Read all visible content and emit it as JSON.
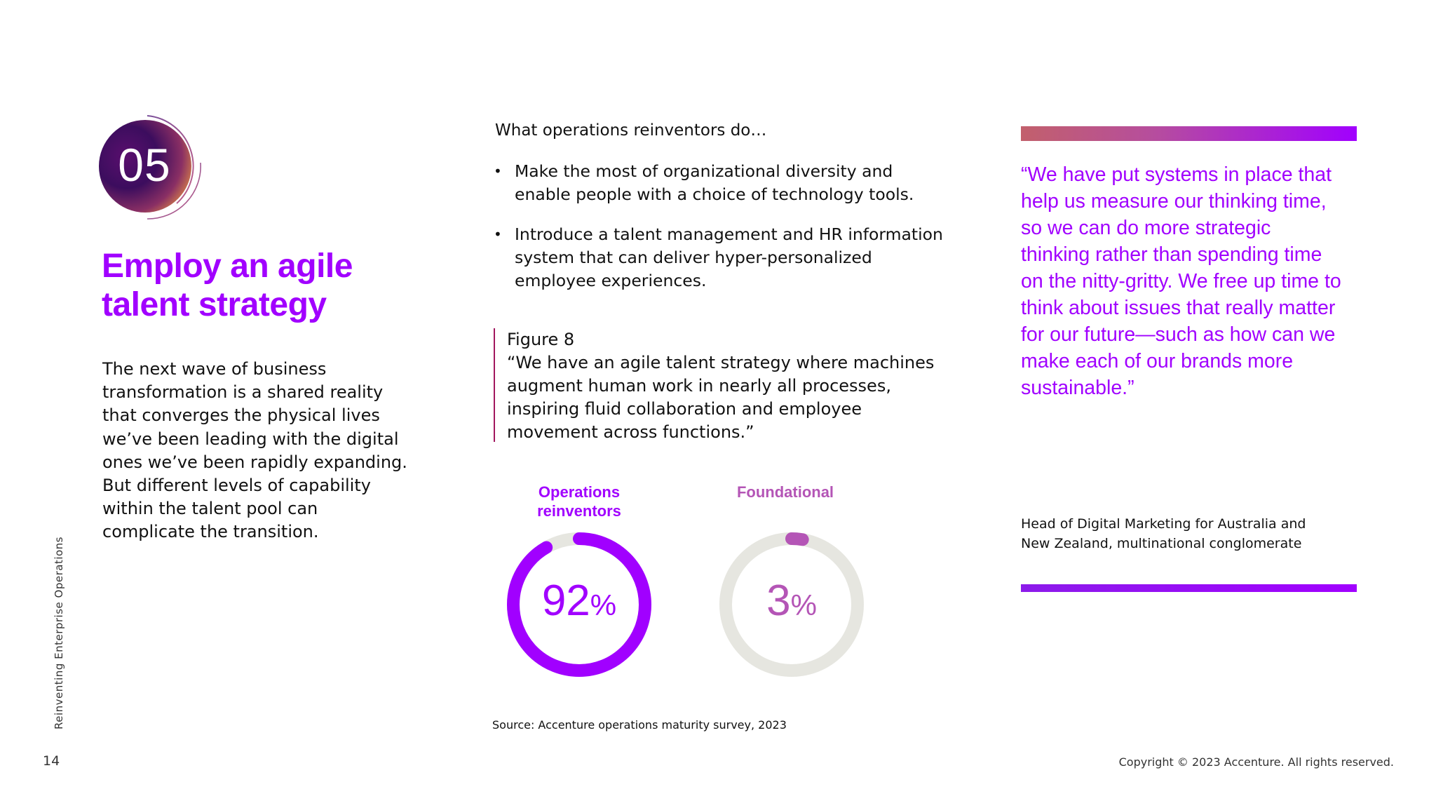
{
  "page": {
    "side_label": "Reinventing Enterprise Operations",
    "page_number": "14",
    "copyright": "Copyright © 2023 Accenture. All rights reserved."
  },
  "section": {
    "number": "05",
    "title_lines": [
      "Employ an agile",
      "talent strategy"
    ],
    "intro": "The next wave of business transformation is a shared reality that converges the physical lives we’ve been leading with the digital ones we’ve been rapidly expanding. But different levels of capability within the talent pool can complicate the transition."
  },
  "middle": {
    "heading": "What operations reinventors do…",
    "bullets": [
      "Make the most of organizational diversity and enable people with a choice of technology tools.",
      "Introduce a talent management and HR information system that can deliver hyper-personalized employee experiences."
    ],
    "figure_label": "Figure 8",
    "figure_quote": "“We have an agile talent strategy where machines augment human work in nearly all processes, inspiring fluid collaboration and employee movement across functions.”",
    "source": "Source: Accenture operations maturity survey, 2023"
  },
  "chart_data": {
    "type": "pie",
    "gauges": [
      {
        "name": "Operations reinventors",
        "value": 92,
        "display": "92",
        "unit": "%",
        "color": "#a100ff"
      },
      {
        "name": "Foundational",
        "value": 3,
        "display": "3",
        "unit": "%",
        "color": "#b455b6"
      }
    ],
    "track_color": "#e6e6e0"
  },
  "quote": {
    "text": "“We have put systems in place that help us measure our thinking time, so we can do more strategic thinking rather than spending time on the nitty-gritty. We free up time to think about issues that really matter for our future—such as how can we make each of our brands more sustainable.”",
    "attribution": "Head of Digital Marketing for Australia and New Zealand, multinational conglomerate"
  },
  "colors": {
    "accent": "#a100ff",
    "foundational": "#b455b6",
    "figure_rule": "#a1165e"
  },
  "icons": {
    "badge": "section-number-orb-icon"
  }
}
